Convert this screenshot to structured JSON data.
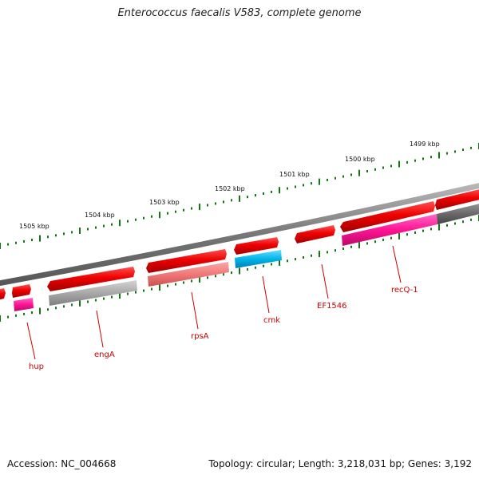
{
  "title": "Enterococcus faecalis V583, complete genome",
  "footer": {
    "accession": "Accession: NC_004668",
    "topology": "Topology: circular; Length: 3,218,031 bp; Genes: 3,192"
  },
  "scale_labels": [
    "1505 kbp",
    "1504 kbp",
    "1503 kbp",
    "1502 kbp",
    "1501 kbp",
    "1500 kbp",
    "1499 kbp"
  ],
  "gene_labels": [
    "hup",
    "engA",
    "rpsA",
    "cmk",
    "EF1546",
    "recQ-1"
  ],
  "colors": {
    "cds_red": "#e60000",
    "pink": "#ff1493",
    "light_red": "#f07878",
    "cyan": "#00b4e8",
    "gray": "#a8a8a8",
    "dark_gray": "#6a6a6a",
    "backbone": "#777777",
    "tick_green": "#117711",
    "label_red": "#cc0000"
  }
}
